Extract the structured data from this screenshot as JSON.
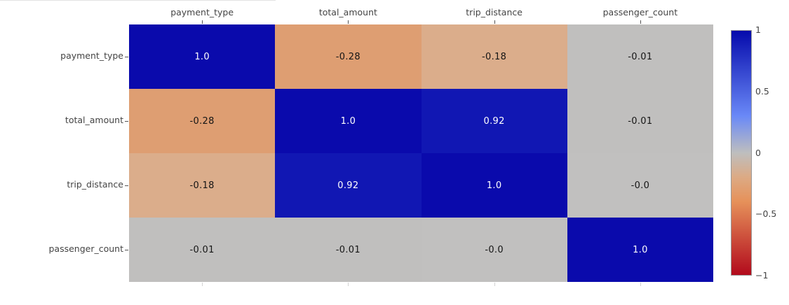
{
  "page": {
    "background": "#ffffff",
    "divider_color": "#e3e3e3"
  },
  "chart_data": {
    "type": "heatmap",
    "title": "",
    "x_labels": [
      "payment_type",
      "total_amount",
      "trip_distance",
      "passenger_count"
    ],
    "y_labels": [
      "payment_type",
      "total_amount",
      "trip_distance",
      "passenger_count"
    ],
    "values": [
      [
        1.0,
        -0.28,
        -0.18,
        -0.01
      ],
      [
        -0.28,
        1.0,
        0.92,
        -0.01
      ],
      [
        -0.18,
        0.92,
        1.0,
        -0.0
      ],
      [
        -0.01,
        -0.01,
        -0.0,
        1.0
      ]
    ],
    "cell_text": [
      [
        "1.0",
        "-0.28",
        "-0.18",
        "-0.01"
      ],
      [
        "-0.28",
        "1.0",
        "0.92",
        "-0.01"
      ],
      [
        "-0.18",
        "0.92",
        "1.0",
        "-0.0"
      ],
      [
        "-0.01",
        "-0.01",
        "-0.0",
        "1.0"
      ]
    ],
    "cell_colors": [
      [
        "#0a0aac",
        "#de9e72",
        "#dbad8b",
        "#c0bfbe"
      ],
      [
        "#de9e72",
        "#0a0aac",
        "#1117b3",
        "#c0bfbe"
      ],
      [
        "#dbad8b",
        "#1117b3",
        "#0a0aac",
        "#c1c0bf"
      ],
      [
        "#c0bfbe",
        "#c0bfbe",
        "#c1c0bf",
        "#0a0aac"
      ]
    ],
    "cell_text_colors": [
      [
        "#ffffff",
        "#151515",
        "#151515",
        "#151515"
      ],
      [
        "#151515",
        "#ffffff",
        "#ffffff",
        "#151515"
      ],
      [
        "#151515",
        "#ffffff",
        "#ffffff",
        "#151515"
      ],
      [
        "#151515",
        "#151515",
        "#151515",
        "#ffffff"
      ]
    ],
    "zmin": -1,
    "zmax": 1,
    "axis_label_color": "#444444",
    "grid": false,
    "colorbar": {
      "position": "right",
      "tick_labels": [
        "1",
        "0.5",
        "0",
        "−0.5",
        "−1"
      ],
      "tick_values": [
        1,
        0.5,
        0,
        -0.5,
        -1
      ],
      "border_color": "#999999",
      "gradient": [
        {
          "pos": 0.0,
          "color": "#050aac"
        },
        {
          "pos": 0.35,
          "color": "#6a89f7"
        },
        {
          "pos": 0.5,
          "color": "#bebebe"
        },
        {
          "pos": 0.6,
          "color": "#dcaa84"
        },
        {
          "pos": 0.7,
          "color": "#e6915a"
        },
        {
          "pos": 1.0,
          "color": "#b20a1c"
        }
      ]
    }
  }
}
